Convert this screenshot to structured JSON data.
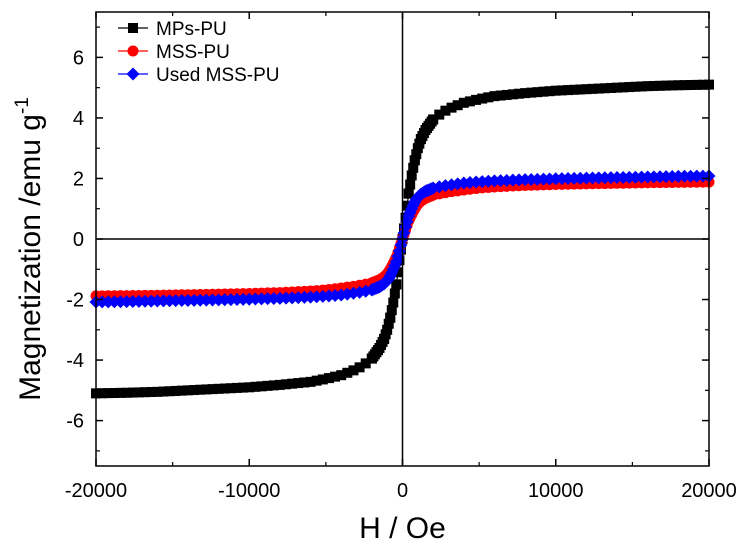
{
  "chart_data": {
    "type": "scatter",
    "title": "",
    "xlabel": "H / Oe",
    "ylabel_main": "Magnetization /emu g",
    "ylabel_sup": "-1",
    "xlim": [
      -20000,
      20000
    ],
    "ylim": [
      -7.5,
      7.5
    ],
    "xticks": [
      -20000,
      -10000,
      0,
      10000,
      20000
    ],
    "xtick_labels": [
      "-20000",
      "-10000",
      "0",
      "10000",
      "20000"
    ],
    "yticks": [
      -6,
      -4,
      -2,
      0,
      2,
      4,
      6
    ],
    "ytick_labels": [
      "-6",
      "-4",
      "-2",
      "0",
      "2",
      "4",
      "6"
    ],
    "grid": false,
    "legend_position": "top-left",
    "series": [
      {
        "name": "MPs-PU",
        "color": "#000000",
        "marker": "square",
        "x": [
          -20000,
          -18000,
          -16000,
          -14000,
          -12000,
          -10000,
          -8000,
          -6000,
          -5000,
          -4000,
          -3000,
          -2500,
          -2000,
          -1500,
          -1200,
          -1000,
          -800,
          -600,
          -400,
          -200,
          -100,
          0,
          100,
          200,
          400,
          600,
          800,
          1000,
          1200,
          1500,
          2000,
          2500,
          3000,
          4000,
          5000,
          6000,
          8000,
          10000,
          12000,
          14000,
          16000,
          18000,
          20000
        ],
        "y": [
          -5.1,
          -5.08,
          -5.05,
          -5.0,
          -4.95,
          -4.9,
          -4.82,
          -4.72,
          -4.62,
          -4.5,
          -4.3,
          -4.15,
          -3.95,
          -3.6,
          -3.3,
          -3.0,
          -2.6,
          -2.1,
          -1.5,
          -0.7,
          -0.35,
          0,
          0.35,
          0.7,
          1.5,
          2.1,
          2.6,
          3.0,
          3.3,
          3.6,
          3.95,
          4.15,
          4.3,
          4.5,
          4.62,
          4.72,
          4.82,
          4.9,
          4.95,
          5.0,
          5.05,
          5.08,
          5.1
        ]
      },
      {
        "name": "MSS-PU",
        "color": "#ff0000",
        "marker": "circle",
        "x": [
          -20000,
          -18000,
          -16000,
          -14000,
          -12000,
          -10000,
          -8000,
          -6000,
          -5000,
          -4000,
          -3000,
          -2500,
          -2000,
          -1500,
          -1200,
          -1000,
          -800,
          -600,
          -400,
          -200,
          -100,
          0,
          100,
          200,
          400,
          600,
          800,
          1000,
          1200,
          1500,
          2000,
          2500,
          3000,
          4000,
          5000,
          6000,
          8000,
          10000,
          12000,
          14000,
          16000,
          18000,
          20000
        ],
        "y": [
          -1.88,
          -1.87,
          -1.86,
          -1.84,
          -1.82,
          -1.8,
          -1.77,
          -1.72,
          -1.68,
          -1.62,
          -1.55,
          -1.5,
          -1.45,
          -1.35,
          -1.25,
          -1.15,
          -1.0,
          -0.8,
          -0.6,
          -0.3,
          -0.15,
          0,
          0.15,
          0.3,
          0.6,
          0.8,
          1.0,
          1.15,
          1.25,
          1.35,
          1.45,
          1.5,
          1.55,
          1.62,
          1.68,
          1.72,
          1.77,
          1.8,
          1.82,
          1.84,
          1.86,
          1.87,
          1.88
        ]
      },
      {
        "name": "Used MSS-PU",
        "color": "#0000ff",
        "marker": "diamond",
        "x": [
          -20000,
          -18000,
          -16000,
          -14000,
          -12000,
          -10000,
          -8000,
          -6000,
          -5000,
          -4000,
          -3000,
          -2500,
          -2000,
          -1500,
          -1200,
          -1000,
          -800,
          -600,
          -400,
          -200,
          -100,
          0,
          100,
          200,
          400,
          600,
          800,
          1000,
          1200,
          1500,
          2000,
          2500,
          3000,
          4000,
          5000,
          6000,
          8000,
          10000,
          12000,
          14000,
          16000,
          18000,
          20000
        ],
        "y": [
          -2.08,
          -2.07,
          -2.05,
          -2.03,
          -2.01,
          -1.99,
          -1.96,
          -1.92,
          -1.89,
          -1.85,
          -1.78,
          -1.74,
          -1.68,
          -1.58,
          -1.48,
          -1.38,
          -1.22,
          -1.0,
          -0.75,
          -0.4,
          -0.2,
          0,
          0.2,
          0.4,
          0.75,
          1.0,
          1.22,
          1.38,
          1.48,
          1.58,
          1.68,
          1.74,
          1.78,
          1.85,
          1.89,
          1.92,
          1.96,
          1.99,
          2.01,
          2.03,
          2.05,
          2.07,
          2.08
        ]
      }
    ]
  }
}
